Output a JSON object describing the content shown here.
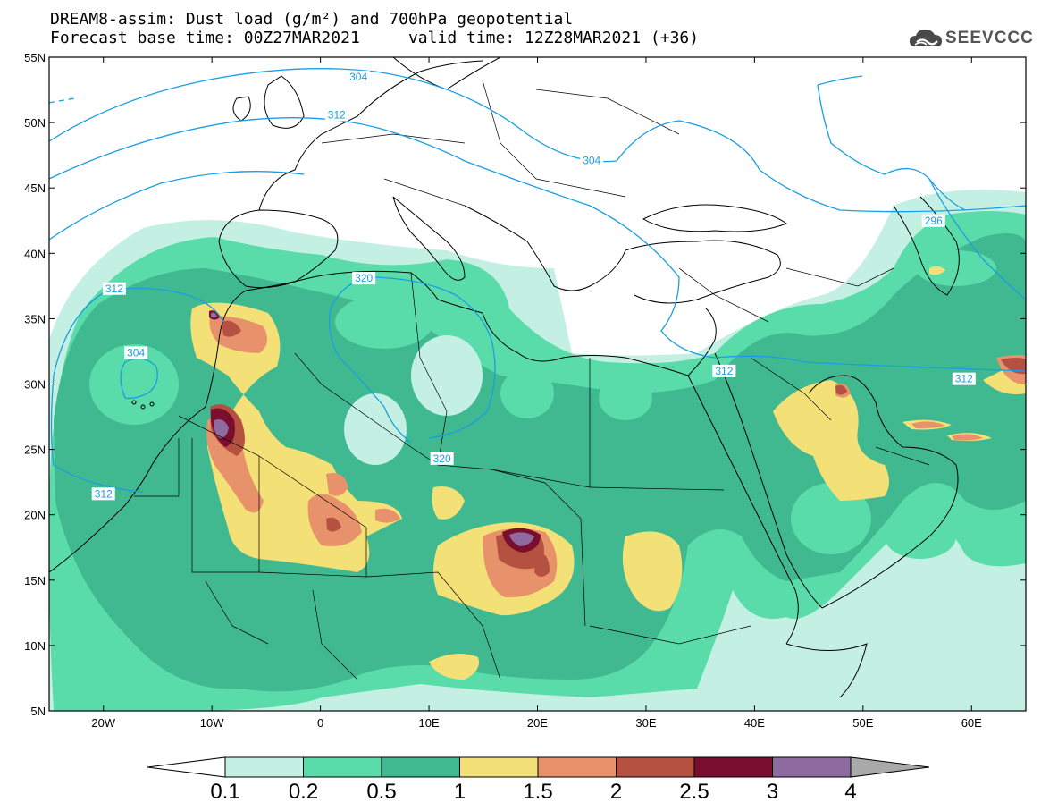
{
  "header": {
    "title_line1": "DREAM8-assim: Dust load (g/m²) and 700hPa geopotential",
    "title_line2": "Forecast base time: 00Z27MAR2021     valid time: 12Z28MAR2021 (+36)",
    "logo_text": "SEEVCCC",
    "logo_icon": "cloud-icon"
  },
  "map": {
    "lon_range": [
      -25,
      65
    ],
    "lat_range": [
      5,
      55
    ],
    "lon_ticks": [
      "20W",
      "10W",
      "0",
      "10E",
      "20E",
      "30E",
      "40E",
      "50E",
      "60E"
    ],
    "lon_tick_values": [
      -20,
      -10,
      0,
      10,
      20,
      30,
      40,
      50,
      60
    ],
    "lat_ticks": [
      "5N",
      "10N",
      "15N",
      "20N",
      "25N",
      "30N",
      "35N",
      "40N",
      "45N",
      "50N",
      "55N"
    ],
    "lat_tick_values": [
      5,
      10,
      15,
      20,
      25,
      30,
      35,
      40,
      45,
      50,
      55
    ],
    "contour_color": "#1a9ee3",
    "contour_labels": [
      {
        "text": "304",
        "lon": 3.5,
        "lat": 53.5
      },
      {
        "text": "312",
        "lon": 1.5,
        "lat": 50.6
      },
      {
        "text": "304",
        "lon": 25,
        "lat": 47.1
      },
      {
        "text": "296",
        "lon": 56.5,
        "lat": 42.5
      },
      {
        "text": "320",
        "lon": 4,
        "lat": 38.1
      },
      {
        "text": "312",
        "lon": -19,
        "lat": 37.3
      },
      {
        "text": "304",
        "lon": -17,
        "lat": 32.4
      },
      {
        "text": "312",
        "lon": 37.2,
        "lat": 31.0
      },
      {
        "text": "312",
        "lon": 59.3,
        "lat": 30.4
      },
      {
        "text": "320",
        "lon": 11.2,
        "lat": 24.3
      },
      {
        "text": "312",
        "lon": -20,
        "lat": 21.6
      }
    ]
  },
  "colorbar": {
    "labels": [
      "0.1",
      "0.2",
      "0.5",
      "1",
      "1.5",
      "2",
      "2.5",
      "3",
      "4"
    ],
    "colors": [
      "#c4f0e4",
      "#59dca9",
      "#40b890",
      "#f3e077",
      "#e8926b",
      "#b55141",
      "#7a0e2e",
      "#8d6ba0"
    ],
    "under_color": "#ffffff",
    "over_color": "#a9a9a9"
  }
}
